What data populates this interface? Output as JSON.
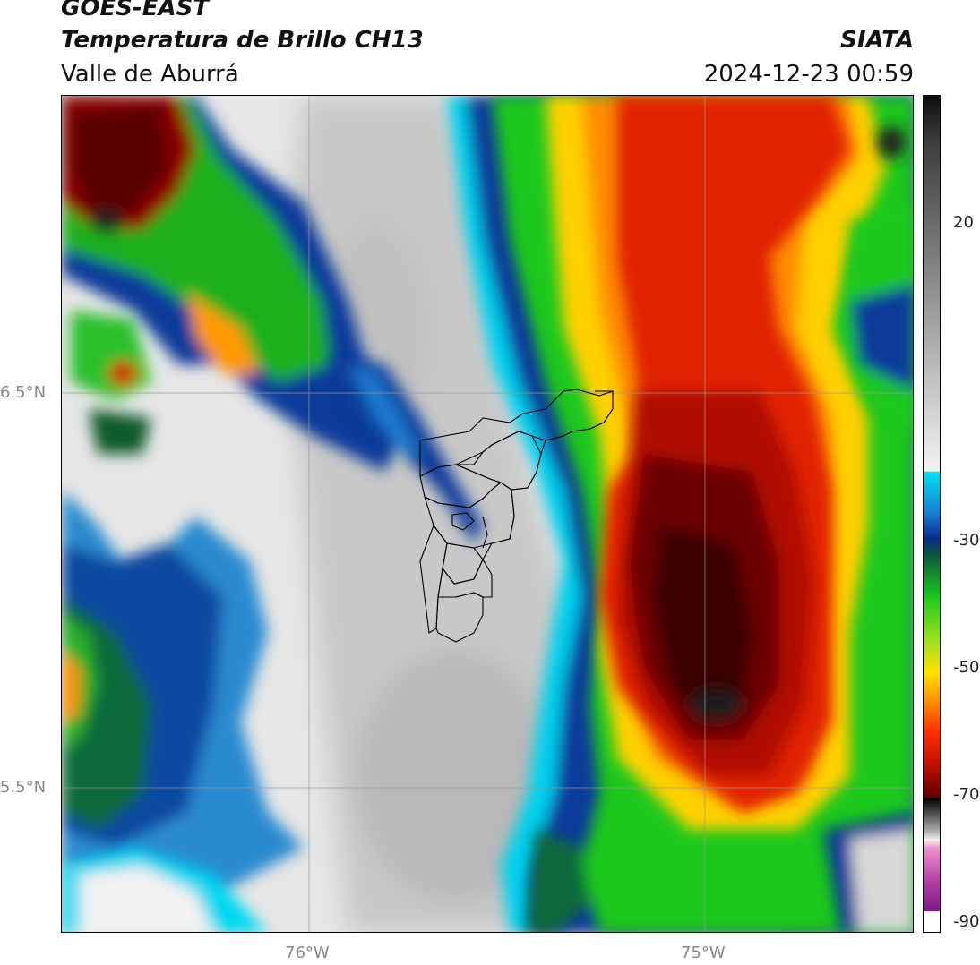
{
  "header": {
    "satellite": "GOES-EAST",
    "product": "Temperatura de Brillo CH13",
    "region": "Valle de Aburrá",
    "agency": "SIATA",
    "timestamp": "2024-12-23 00:59"
  },
  "axes": {
    "lat_labels": [
      "6.5°N",
      "5.5°N"
    ],
    "lon_labels": [
      "76°W",
      "75°W"
    ]
  },
  "colorbar": {
    "ticks": [
      "20",
      "-30",
      "-50",
      "-70",
      "-90"
    ],
    "colors": {
      "hot_gray": "#1a1a1a",
      "light_gray": "#e8e8e8",
      "cyan": "#00d8f0",
      "blue": "#0a3a9a",
      "green": "#1fc81f",
      "yellow": "#ffe000",
      "orange": "#ff8c00",
      "red": "#d41a00",
      "dark_red": "#5a0000",
      "black": "#000000",
      "pink": "#e070c0",
      "purple": "#7a1a8a"
    }
  }
}
